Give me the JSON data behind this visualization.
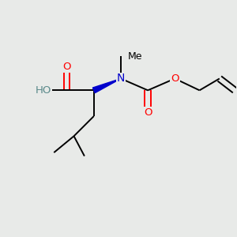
{
  "background_color": "#e8eae8",
  "atom_colors": {
    "C": "#000000",
    "O": "#ff0000",
    "N": "#0000cc",
    "H": "#5a8a8a"
  },
  "figsize": [
    3.0,
    3.0
  ],
  "dpi": 100,
  "bond_lw": 1.4,
  "font_size": 9.5
}
